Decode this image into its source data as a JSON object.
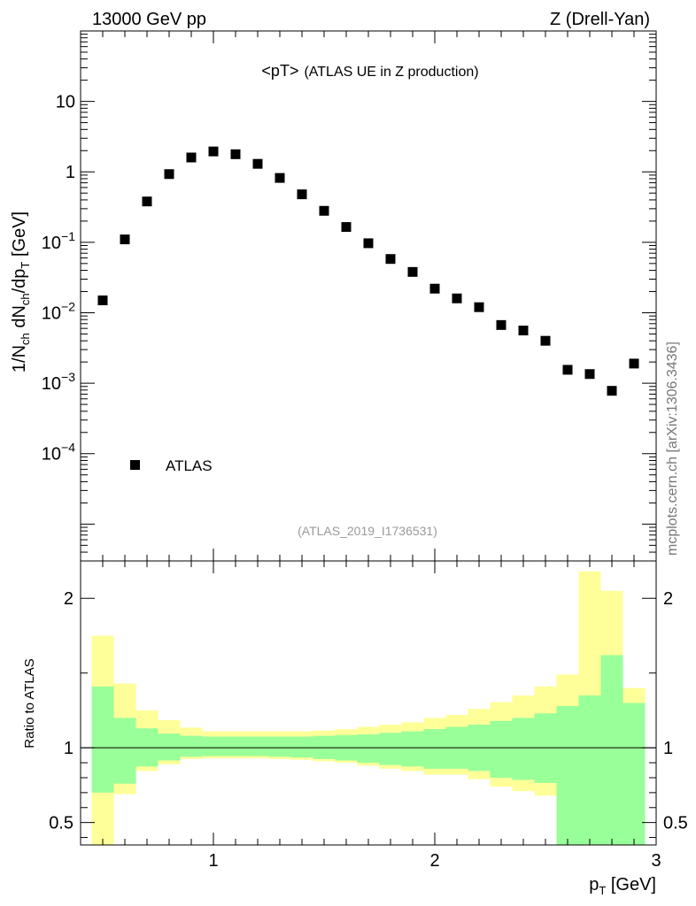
{
  "header": {
    "left": "13000 GeV pp",
    "right": "Z (Drell-Yan)"
  },
  "side_label": "mcplots.cern.ch [arXiv:1306.3436]",
  "chart_data": [
    {
      "type": "scatter",
      "title": "<pT>",
      "subtitle": "(ATLAS UE in Z production)",
      "analysis_label": "(ATLAS_2019_I1736531)",
      "ylabel": {
        "base": "1/N",
        "sub1": "ch",
        "mid": " dN",
        "sub2": "ch",
        "tail": "/dp",
        "sub3": "T",
        "unit": " [GeV]"
      },
      "yscale": "log",
      "xlim": [
        0.4,
        3.0
      ],
      "ylim": [
        3e-06,
        100
      ],
      "y_ticks": [
        {
          "value": 0.0001,
          "mant": "10",
          "exp": "−4"
        },
        {
          "value": 0.001,
          "mant": "10",
          "exp": "−3"
        },
        {
          "value": 0.01,
          "mant": "10",
          "exp": "−2"
        },
        {
          "value": 0.1,
          "mant": "10",
          "exp": "−1"
        },
        {
          "value": 1,
          "label": "1"
        },
        {
          "value": 10,
          "label": "10"
        }
      ],
      "legend": [
        {
          "name": "ATLAS",
          "marker": "square",
          "color": "#000000",
          "position": "bottom-left"
        }
      ],
      "series": [
        {
          "name": "ATLAS",
          "x": [
            0.5,
            0.6,
            0.7,
            0.8,
            0.9,
            1.0,
            1.1,
            1.2,
            1.3,
            1.4,
            1.5,
            1.6,
            1.7,
            1.8,
            1.9,
            2.0,
            2.1,
            2.2,
            2.3,
            2.4,
            2.5,
            2.6,
            2.7,
            2.8,
            2.9
          ],
          "y": [
            0.015,
            0.11,
            0.38,
            0.93,
            1.6,
            1.95,
            1.78,
            1.3,
            0.82,
            0.48,
            0.28,
            0.165,
            0.097,
            0.058,
            0.038,
            0.022,
            0.016,
            0.012,
            0.0067,
            0.0056,
            0.004,
            0.00155,
            0.00135,
            0.00078,
            0.0019
          ]
        }
      ]
    },
    {
      "type": "area",
      "ylabel": "Ratio to ATLAS",
      "xlabel": "p",
      "xlabel_sub": "T",
      "xlabel_unit": " [GeV]",
      "xlim": [
        0.4,
        3.0
      ],
      "ylim": [
        0.35,
        2.25
      ],
      "x_ticks": [
        1,
        2,
        3
      ],
      "y_ticks": [
        0.5,
        1,
        2
      ],
      "reference_line": 1,
      "band_colors": {
        "outer": "#ffff99",
        "inner": "#99ff99",
        "line": "#000000"
      },
      "bins": {
        "edges": [
          0.45,
          0.55,
          0.65,
          0.75,
          0.85,
          0.95,
          1.05,
          1.15,
          1.25,
          1.35,
          1.45,
          1.55,
          1.65,
          1.75,
          1.85,
          1.95,
          2.05,
          2.15,
          2.25,
          2.35,
          2.45,
          2.55,
          2.65,
          2.75,
          2.85,
          2.95
        ],
        "outer_low": [
          0.2,
          0.69,
          0.845,
          0.89,
          0.925,
          0.93,
          0.93,
          0.93,
          0.925,
          0.92,
          0.91,
          0.9,
          0.88,
          0.86,
          0.845,
          0.82,
          0.82,
          0.79,
          0.74,
          0.71,
          0.68,
          0.2,
          0.2,
          0.2,
          0.2
        ],
        "outer_high": [
          1.75,
          1.43,
          1.25,
          1.185,
          1.135,
          1.11,
          1.11,
          1.11,
          1.11,
          1.11,
          1.115,
          1.125,
          1.14,
          1.155,
          1.17,
          1.2,
          1.22,
          1.26,
          1.305,
          1.35,
          1.41,
          1.49,
          2.18,
          2.05,
          1.4
        ],
        "inner_low": [
          0.7,
          0.76,
          0.875,
          0.915,
          0.94,
          0.945,
          0.945,
          0.945,
          0.94,
          0.935,
          0.925,
          0.915,
          0.9,
          0.885,
          0.875,
          0.86,
          0.86,
          0.845,
          0.8,
          0.785,
          0.765,
          0.2,
          0.2,
          0.2,
          0.2
        ],
        "inner_high": [
          1.41,
          1.2,
          1.13,
          1.095,
          1.08,
          1.075,
          1.075,
          1.075,
          1.075,
          1.075,
          1.08,
          1.085,
          1.09,
          1.1,
          1.11,
          1.125,
          1.14,
          1.155,
          1.18,
          1.2,
          1.23,
          1.28,
          1.35,
          1.62,
          1.3
        ]
      }
    }
  ]
}
